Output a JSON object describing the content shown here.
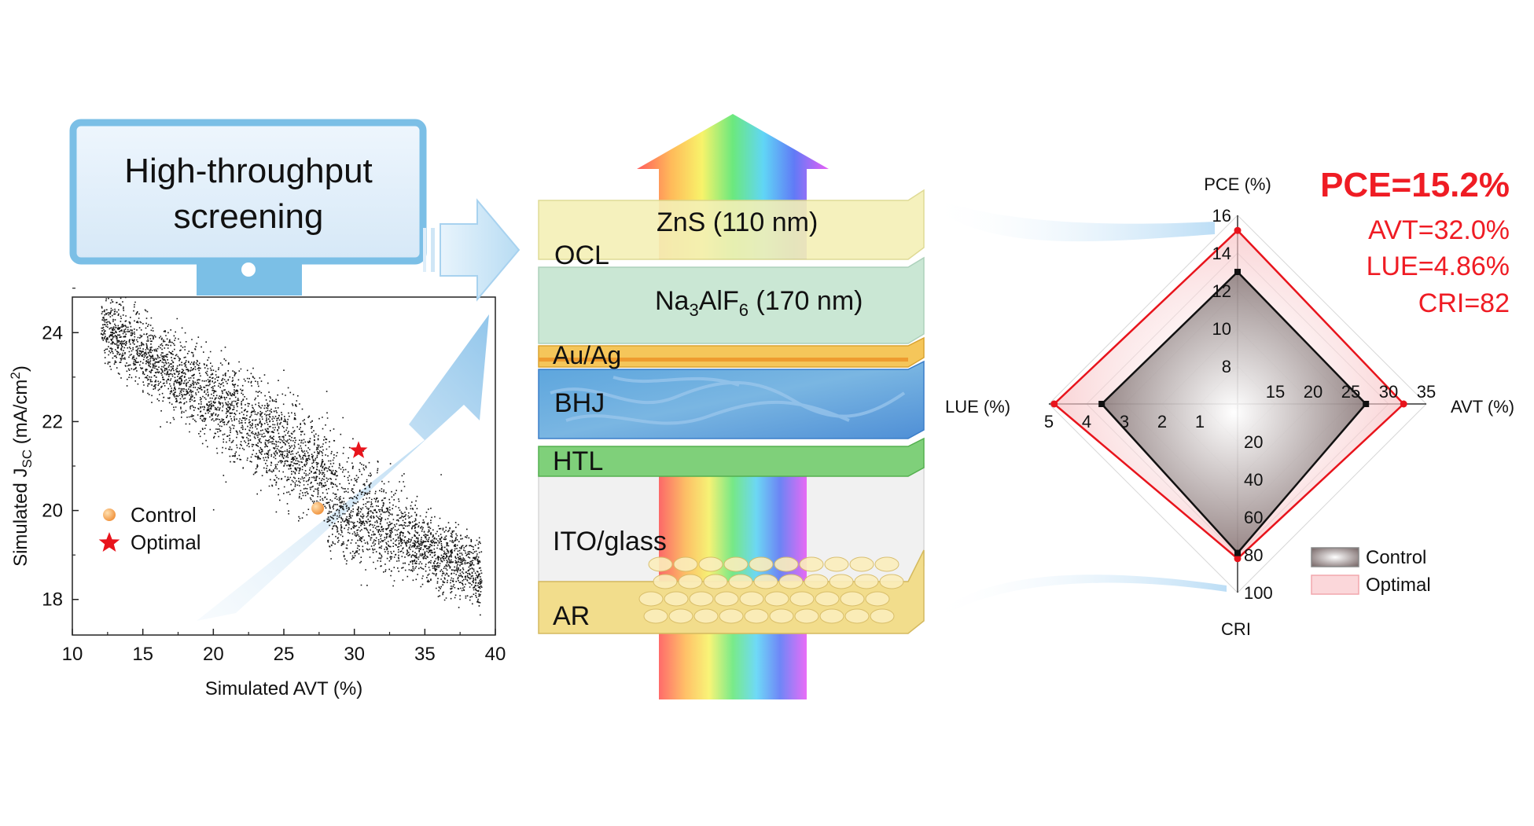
{
  "monitor": {
    "line1": "High-throughput",
    "line2": "screening"
  },
  "scatter": {
    "ylabel_main": "Simulated J",
    "ylabel_sub": "SC",
    "ylabel_unit": " (mA/cm",
    "ylabel_sup": "2",
    "ylabel_end": ")",
    "xlabel": "Simulated AVT (%)",
    "xticks": [
      "10",
      "15",
      "20",
      "25",
      "30",
      "35",
      "40"
    ],
    "yticks": [
      "18",
      "20",
      "22",
      "24"
    ],
    "legend": [
      {
        "label": "Control",
        "marker": "circle",
        "color": "#f5a24a"
      },
      {
        "label": "Optimal",
        "marker": "star",
        "color": "#e8141c"
      }
    ]
  },
  "chart_data": {
    "type": "scatter",
    "xlabel": "Simulated AVT (%)",
    "ylabel": "Simulated JSC (mA/cm2)",
    "xlim": [
      10,
      40
    ],
    "ylim": [
      17.2,
      24.8
    ],
    "series": [
      {
        "name": "Control",
        "x": [
          27.4
        ],
        "y": [
          20.05
        ]
      },
      {
        "name": "Optimal",
        "x": [
          30.3
        ],
        "y": [
          21.35
        ]
      }
    ]
  },
  "stack": {
    "layers": [
      {
        "id": "zns",
        "label": "ZnS (110 nm)"
      },
      {
        "id": "ocl",
        "label": "OCL"
      },
      {
        "id": "na3alf6",
        "label_pre": "Na",
        "label_s1": "3",
        "label_mid": "AlF",
        "label_s2": "6",
        "label_post": " (170 nm)"
      },
      {
        "id": "auag",
        "label": "Au/Ag"
      },
      {
        "id": "bhj",
        "label": "BHJ"
      },
      {
        "id": "htl",
        "label": "HTL"
      },
      {
        "id": "ito",
        "label": "ITO/glass"
      },
      {
        "id": "ar",
        "label": "AR"
      }
    ]
  },
  "radar": {
    "axes": {
      "top": "PCE (%)",
      "right": "AVT (%)",
      "bottom": "CRI",
      "left": "LUE (%)"
    },
    "pce_ticks": [
      "8",
      "10",
      "12",
      "14",
      "16"
    ],
    "avt_ticks": [
      "15",
      "20",
      "25",
      "30",
      "35"
    ],
    "lue_ticks": [
      "1",
      "2",
      "3",
      "4",
      "5"
    ],
    "cri_ticks": [
      "20",
      "40",
      "60",
      "80",
      "100"
    ],
    "legend": [
      {
        "label": "Control",
        "color": "#000000"
      },
      {
        "label": "Optimal",
        "color": "#e8141c"
      }
    ],
    "series": [
      {
        "name": "Control",
        "PCE": 13.0,
        "AVT": 27.0,
        "LUE": 3.6,
        "CRI": 79
      },
      {
        "name": "Optimal",
        "PCE": 15.2,
        "AVT": 32.0,
        "LUE": 4.86,
        "CRI": 82
      }
    ]
  },
  "results": {
    "pce": "PCE=15.2%",
    "avt": "AVT=32.0%",
    "lue": "LUE=4.86%",
    "cri": "CRI=82"
  }
}
